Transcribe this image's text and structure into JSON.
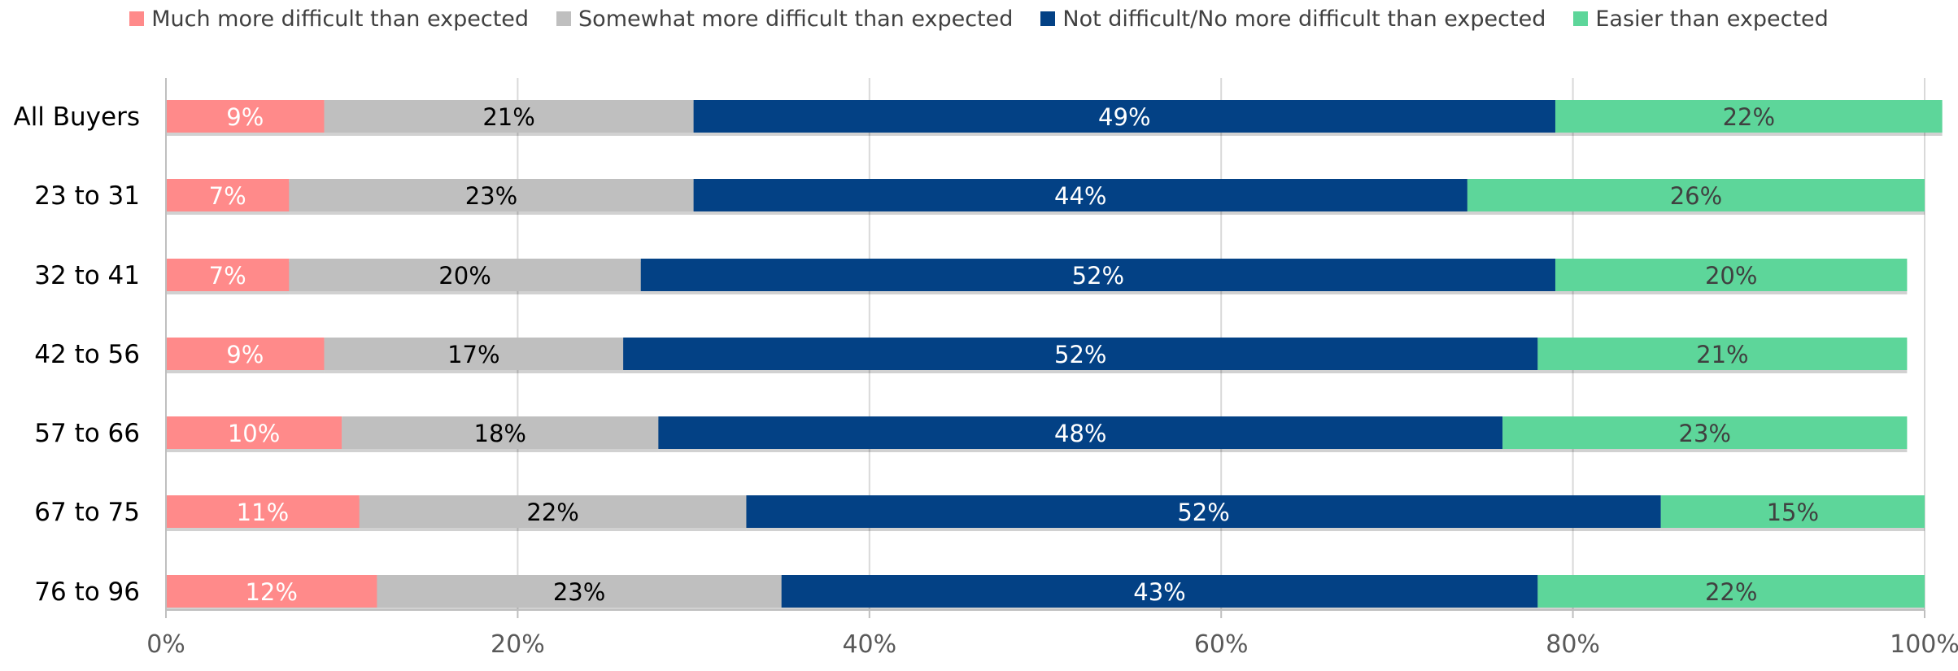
{
  "chart_data": {
    "type": "bar",
    "orientation": "horizontal",
    "stacked": true,
    "title": "",
    "xlabel": "",
    "ylabel": "",
    "xlim": [
      0,
      100
    ],
    "x_ticks": [
      "0%",
      "20%",
      "40%",
      "60%",
      "80%",
      "100%"
    ],
    "grid": true,
    "legend_position": "top",
    "categories": [
      "All Buyers",
      "23 to 31",
      "32 to 41",
      "42 to 56",
      "57 to 66",
      "67 to 75",
      "76 to 96"
    ],
    "series": [
      {
        "name": "Much more difficult than expected",
        "color": "#FF8A8A",
        "label_color": "#FFFFFF",
        "values": [
          9,
          7,
          7,
          9,
          10,
          11,
          12
        ]
      },
      {
        "name": "Somewhat more difficult than expected",
        "color": "#BFBFBF",
        "label_color": "#000000",
        "values": [
          21,
          23,
          20,
          17,
          18,
          22,
          23
        ]
      },
      {
        "name": "Not difficult/No more difficult than expected",
        "color": "#034185",
        "label_color": "#FFFFFF",
        "values": [
          49,
          44,
          52,
          52,
          48,
          52,
          43
        ]
      },
      {
        "name": "Easier than expected",
        "color": "#5DD69A",
        "label_color": "#404040",
        "values": [
          22,
          26,
          20,
          21,
          23,
          15,
          22
        ]
      }
    ]
  }
}
